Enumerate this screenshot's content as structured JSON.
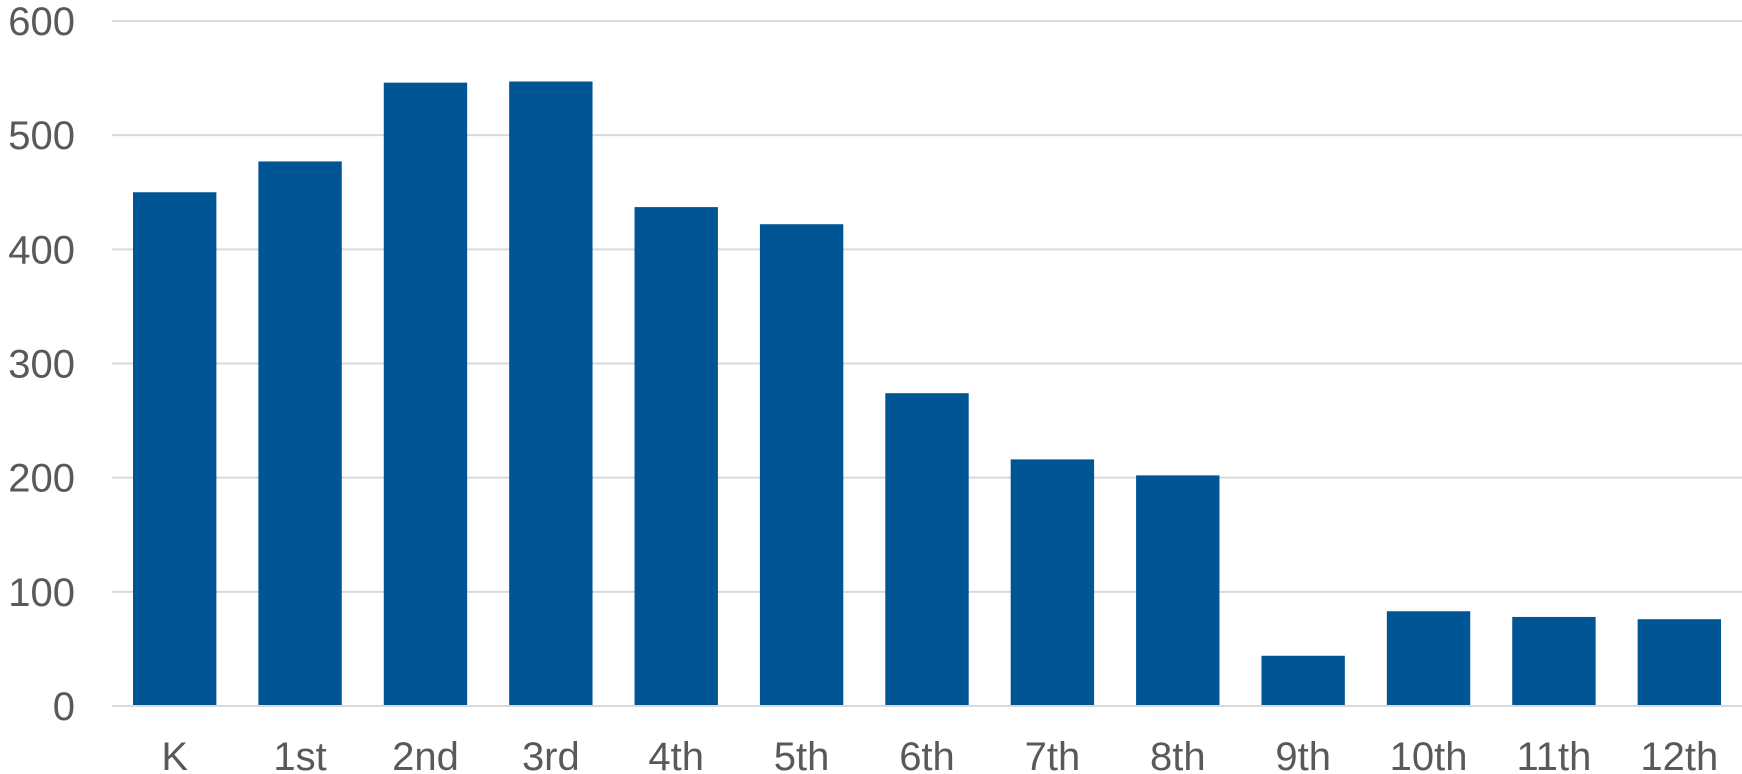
{
  "chart_data": {
    "type": "bar",
    "title": "",
    "xlabel": "",
    "ylabel": "",
    "categories": [
      "K",
      "1st",
      "2nd",
      "3rd",
      "4th",
      "5th",
      "6th",
      "7th",
      "8th",
      "9th",
      "10th",
      "11th",
      "12th"
    ],
    "values": [
      450,
      477,
      546,
      547,
      437,
      422,
      274,
      216,
      202,
      44,
      83,
      78,
      76
    ],
    "ylim": [
      0,
      600
    ],
    "yticks": [
      0,
      100,
      200,
      300,
      400,
      500,
      600
    ],
    "grid": true,
    "legend": "none",
    "bar_color": "#005595",
    "grid_color": "#d9d9d9",
    "label_color": "#595959"
  }
}
